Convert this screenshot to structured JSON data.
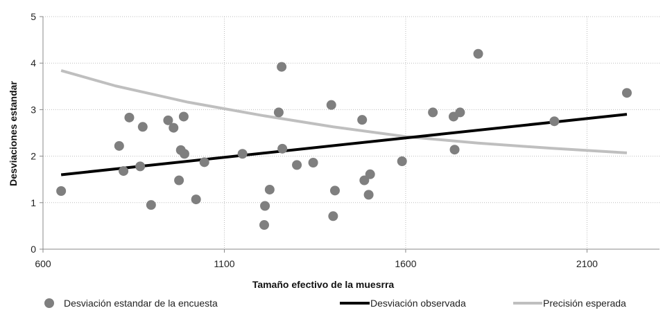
{
  "chart_data": {
    "type": "scatter",
    "title": "",
    "xlabel": "Tamaño efectivo de la muesrra",
    "ylabel": "Desviaciones estandar",
    "xlim": [
      600,
      2300
    ],
    "ylim": [
      0,
      5
    ],
    "xticks": [
      600,
      1100,
      1600,
      2100
    ],
    "yticks": [
      0,
      1,
      2,
      3,
      4,
      5
    ],
    "grid": "dotted vertical and horizontal",
    "legend_position": "bottom",
    "colors": {
      "points": "#7f7f7f",
      "observed": "#000000",
      "expected": "#bfbfbf",
      "grid": "#bbbbbb",
      "axis": "#888888"
    },
    "series": [
      {
        "name": "Desviación estandar de la encuesta",
        "kind": "scatter",
        "points": [
          [
            650,
            1.25
          ],
          [
            810,
            2.22
          ],
          [
            822,
            1.68
          ],
          [
            838,
            2.83
          ],
          [
            868,
            1.78
          ],
          [
            875,
            2.63
          ],
          [
            898,
            0.95
          ],
          [
            945,
            2.77
          ],
          [
            960,
            2.61
          ],
          [
            975,
            1.48
          ],
          [
            980,
            2.13
          ],
          [
            988,
            2.85
          ],
          [
            990,
            2.05
          ],
          [
            1022,
            1.07
          ],
          [
            1045,
            1.87
          ],
          [
            1150,
            2.05
          ],
          [
            1210,
            0.52
          ],
          [
            1212,
            0.93
          ],
          [
            1225,
            1.28
          ],
          [
            1250,
            2.94
          ],
          [
            1258,
            3.92
          ],
          [
            1260,
            2.16
          ],
          [
            1300,
            1.81
          ],
          [
            1345,
            1.86
          ],
          [
            1395,
            3.1
          ],
          [
            1400,
            0.71
          ],
          [
            1405,
            1.26
          ],
          [
            1480,
            2.78
          ],
          [
            1486,
            1.48
          ],
          [
            1498,
            1.17
          ],
          [
            1502,
            1.61
          ],
          [
            1590,
            1.89
          ],
          [
            1675,
            2.94
          ],
          [
            1732,
            2.85
          ],
          [
            1735,
            2.14
          ],
          [
            1750,
            2.94
          ],
          [
            1800,
            4.2
          ],
          [
            2010,
            2.75
          ],
          [
            2210,
            3.36
          ]
        ]
      },
      {
        "name": "Desviación observada",
        "kind": "line",
        "points": [
          [
            650,
            1.6
          ],
          [
            2210,
            2.9
          ]
        ]
      },
      {
        "name": "Precisión esperada",
        "kind": "line",
        "points": [
          [
            650,
            3.84
          ],
          [
            800,
            3.51
          ],
          [
            1000,
            3.16
          ],
          [
            1200,
            2.88
          ],
          [
            1400,
            2.63
          ],
          [
            1600,
            2.42
          ],
          [
            1800,
            2.28
          ],
          [
            2000,
            2.17
          ],
          [
            2210,
            2.07
          ]
        ]
      }
    ]
  }
}
